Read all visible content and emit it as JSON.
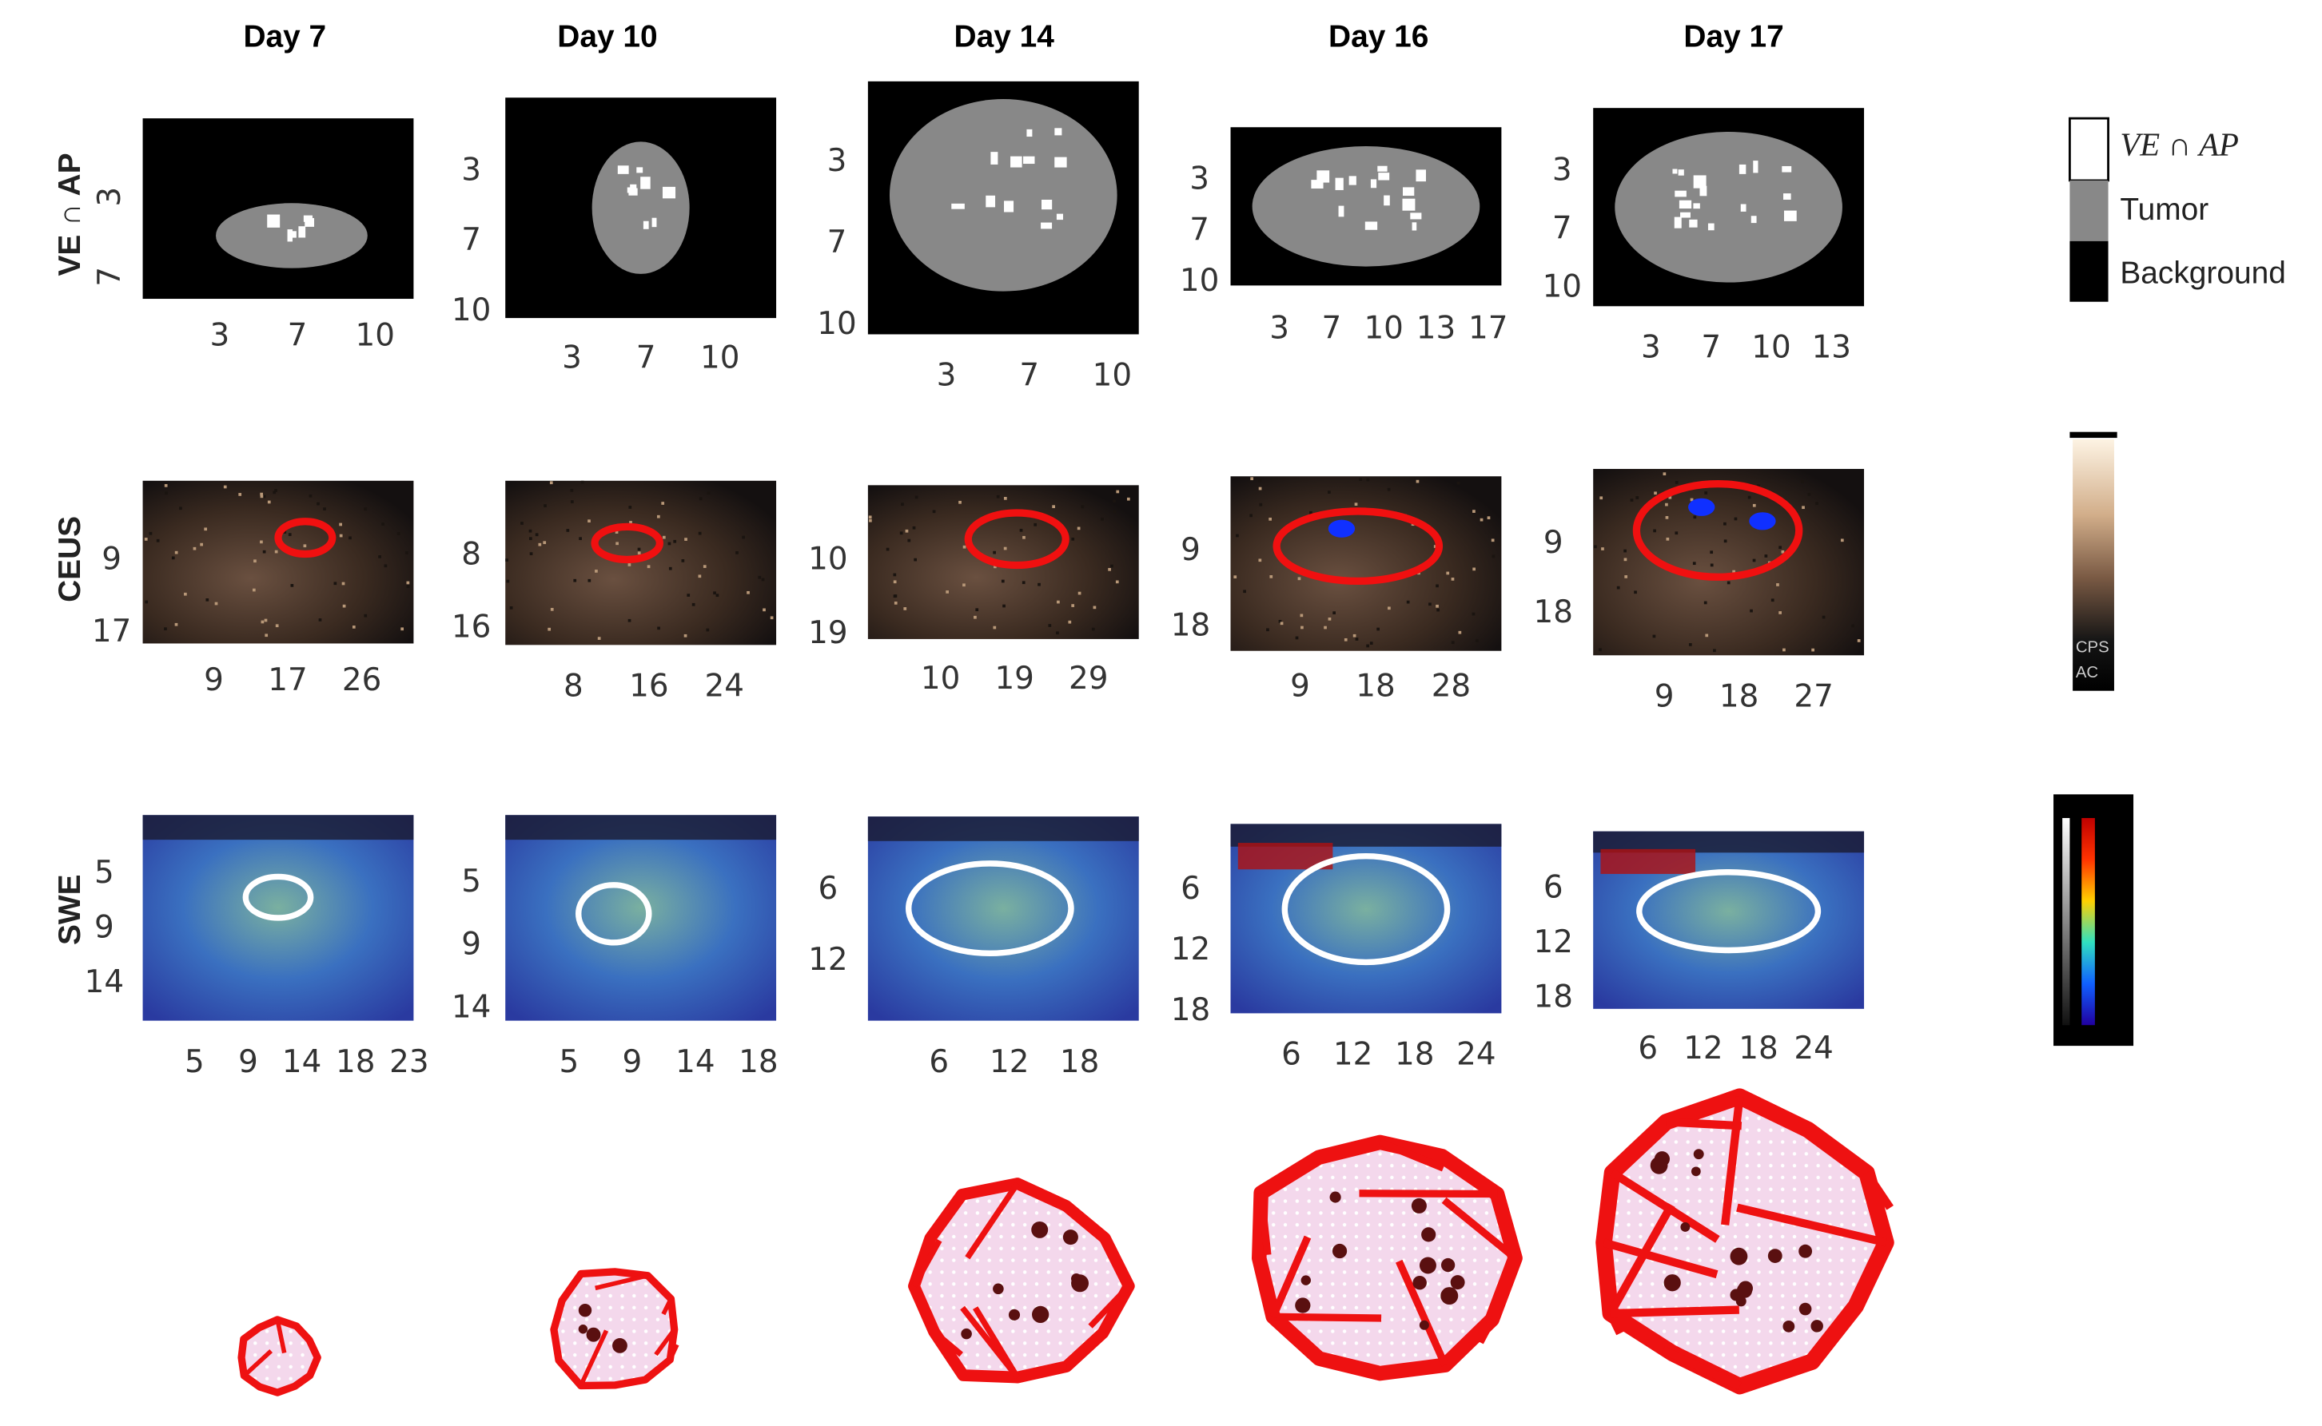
{
  "columns": [
    {
      "title": "Day 7",
      "panels": [
        {
          "xticks": [
            3,
            7,
            10
          ],
          "yticks": [
            3,
            7
          ]
        },
        {
          "xticks": [
            9,
            17,
            26
          ],
          "yticks": [
            9,
            17
          ]
        },
        {
          "xticks": [
            5,
            9,
            14,
            18,
            23
          ],
          "yticks": [
            5,
            9,
            14
          ]
        }
      ]
    },
    {
      "title": "Day 10",
      "panels": [
        {
          "xticks": [
            3,
            7,
            10
          ],
          "yticks": [
            3,
            7,
            10
          ]
        },
        {
          "xticks": [
            8,
            16,
            24
          ],
          "yticks": [
            8,
            16
          ]
        },
        {
          "xticks": [
            5,
            9,
            14,
            18
          ],
          "yticks": [
            5,
            9,
            14
          ]
        }
      ]
    },
    {
      "title": "Day 14",
      "panels": [
        {
          "xticks": [
            3,
            7,
            10
          ],
          "yticks": [
            3,
            7,
            10
          ]
        },
        {
          "xticks": [
            10,
            19,
            29
          ],
          "yticks": [
            10,
            19
          ]
        },
        {
          "xticks": [
            6,
            12,
            18
          ],
          "yticks": [
            6,
            12
          ]
        }
      ]
    },
    {
      "title": "Day 16",
      "panels": [
        {
          "xticks": [
            3,
            7,
            10,
            13,
            17
          ],
          "yticks": [
            3,
            7,
            10
          ]
        },
        {
          "xticks": [
            9,
            18,
            28
          ],
          "yticks": [
            9,
            18
          ]
        },
        {
          "xticks": [
            6,
            12,
            18,
            24
          ],
          "yticks": [
            6,
            12,
            18
          ]
        }
      ]
    },
    {
      "title": "Day 17",
      "panels": [
        {
          "xticks": [
            3,
            7,
            10,
            13
          ],
          "yticks": [
            3,
            7,
            10
          ]
        },
        {
          "xticks": [
            9,
            18,
            27
          ],
          "yticks": [
            9,
            18
          ]
        },
        {
          "xticks": [
            6,
            12,
            18,
            24
          ],
          "yticks": [
            6,
            12,
            18
          ]
        }
      ]
    }
  ],
  "row_labels": [
    "VE ∩ AP",
    "CEUS",
    "SWE"
  ],
  "legend": {
    "items": [
      "VE ∩ AP",
      "Tumor",
      "Background"
    ]
  },
  "ceus_colorbar": {
    "labels": [
      "CPS",
      "AC"
    ]
  }
}
